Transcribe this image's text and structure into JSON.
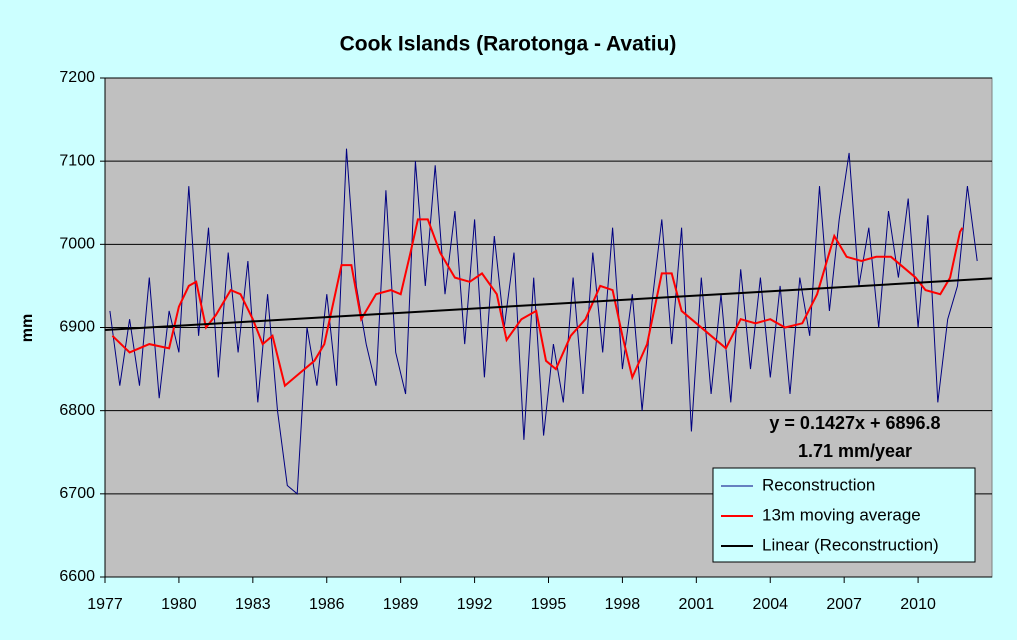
{
  "chart_data": {
    "type": "line",
    "title": "Cook Islands (Rarotonga - Avatiu)",
    "y_label": "mm",
    "annotations": [
      "y = 0.1427x + 6896.8",
      "1.71 mm/year"
    ],
    "xlim": [
      1977,
      2013
    ],
    "xticks": [
      1977,
      1980,
      1983,
      1986,
      1989,
      1992,
      1995,
      1998,
      2001,
      2004,
      2007,
      2010
    ],
    "ylim": [
      6600,
      7200
    ],
    "yticks": [
      6600,
      6700,
      6800,
      6900,
      7000,
      7100,
      7200
    ],
    "grid": true,
    "legend": "lower right",
    "background": "#ccffff",
    "plot_background": "#c0c0c0",
    "series": [
      {
        "name": "Reconstruction",
        "color": "#000080",
        "width": 1,
        "x": [
          1977.2,
          1977.6,
          1978.0,
          1978.4,
          1978.8,
          1979.2,
          1979.6,
          1980.0,
          1980.4,
          1980.8,
          1981.2,
          1981.6,
          1982.0,
          1982.4,
          1982.8,
          1983.2,
          1983.6,
          1984.0,
          1984.4,
          1984.8,
          1985.2,
          1985.6,
          1986.0,
          1986.4,
          1986.8,
          1987.2,
          1987.6,
          1988.0,
          1988.4,
          1988.8,
          1989.2,
          1989.6,
          1990.0,
          1990.4,
          1990.8,
          1991.2,
          1991.6,
          1992.0,
          1992.4,
          1992.8,
          1993.2,
          1993.6,
          1994.0,
          1994.4,
          1994.8,
          1995.2,
          1995.6,
          1996.0,
          1996.4,
          1996.8,
          1997.2,
          1997.6,
          1998.0,
          1998.4,
          1998.8,
          1999.2,
          1999.6,
          2000.0,
          2000.4,
          2000.8,
          2001.2,
          2001.6,
          2002.0,
          2002.4,
          2002.8,
          2003.2,
          2003.6,
          2004.0,
          2004.4,
          2004.8,
          2005.2,
          2005.6,
          2006.0,
          2006.4,
          2006.8,
          2007.2,
          2007.6,
          2008.0,
          2008.4,
          2008.8,
          2009.2,
          2009.6,
          2010.0,
          2010.4,
          2010.8,
          2011.2,
          2011.6,
          2012.0,
          2012.4
        ],
        "values": [
          6920,
          6830,
          6910,
          6830,
          6960,
          6815,
          6920,
          6870,
          7070,
          6890,
          7020,
          6840,
          6990,
          6870,
          6980,
          6810,
          6940,
          6800,
          6710,
          6700,
          6900,
          6830,
          6940,
          6830,
          7115,
          6950,
          6880,
          6830,
          7065,
          6870,
          6820,
          7100,
          6950,
          7095,
          6940,
          7040,
          6880,
          7030,
          6840,
          7010,
          6900,
          6990,
          6765,
          6960,
          6770,
          6880,
          6810,
          6960,
          6820,
          6990,
          6870,
          7020,
          6850,
          6940,
          6800,
          6930,
          7030,
          6880,
          7020,
          6775,
          6960,
          6820,
          6940,
          6810,
          6970,
          6850,
          6960,
          6840,
          6950,
          6820,
          6960,
          6890,
          7070,
          6920,
          7030,
          7110,
          6950,
          7020,
          6900,
          7040,
          6960,
          7055,
          6900,
          7035,
          6810,
          6910,
          6950,
          7070,
          6980
        ]
      },
      {
        "name": "13m moving average",
        "color": "#ff0000",
        "width": 2,
        "x": [
          1977.3,
          1978.0,
          1978.8,
          1979.6,
          1980.0,
          1980.4,
          1980.7,
          1981.1,
          1981.5,
          1982.1,
          1982.5,
          1983.0,
          1983.4,
          1983.8,
          1984.3,
          1984.9,
          1985.5,
          1985.9,
          1986.6,
          1987.0,
          1987.4,
          1988.0,
          1988.6,
          1989.0,
          1989.4,
          1989.7,
          1990.1,
          1990.6,
          1991.2,
          1991.8,
          1992.3,
          1992.9,
          1993.3,
          1993.9,
          1994.5,
          1994.9,
          1995.3,
          1995.9,
          1996.5,
          1997.1,
          1997.6,
          1998.0,
          1998.4,
          1999.0,
          1999.6,
          2000.0,
          2000.4,
          2001.0,
          2001.6,
          2002.2,
          2002.8,
          2003.4,
          2004.0,
          2004.6,
          2005.3,
          2005.9,
          2006.3,
          2006.6,
          2007.1,
          2007.7,
          2008.3,
          2008.9,
          2009.5,
          2009.9,
          2010.3,
          2010.9,
          2011.3,
          2011.7,
          2011.8
        ],
        "values": [
          6890,
          6870,
          6880,
          6875,
          6925,
          6950,
          6955,
          6900,
          6915,
          6945,
          6940,
          6910,
          6880,
          6890,
          6830,
          6845,
          6860,
          6880,
          6975,
          6975,
          6910,
          6940,
          6945,
          6940,
          6990,
          7030,
          7030,
          6990,
          6960,
          6955,
          6965,
          6940,
          6885,
          6910,
          6920,
          6860,
          6850,
          6890,
          6910,
          6950,
          6945,
          6890,
          6840,
          6880,
          6965,
          6965,
          6920,
          6905,
          6890,
          6875,
          6910,
          6905,
          6910,
          6900,
          6905,
          6940,
          6980,
          7010,
          6985,
          6980,
          6985,
          6985,
          6970,
          6960,
          6945,
          6940,
          6960,
          7015,
          7020
        ]
      },
      {
        "name": "Linear (Reconstruction)",
        "color": "#000000",
        "width": 2,
        "x": [
          1977,
          2013
        ],
        "values": [
          6897,
          6959
        ]
      }
    ]
  }
}
